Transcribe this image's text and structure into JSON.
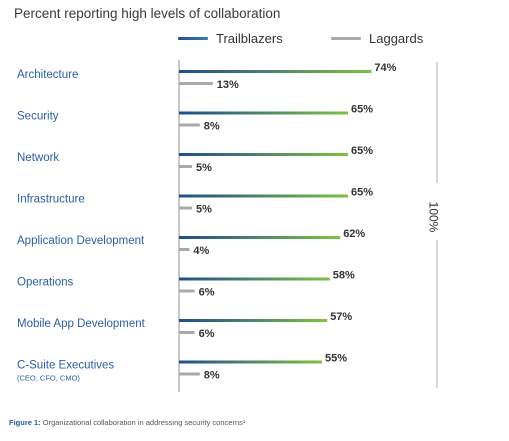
{
  "title": "Percent reporting high levels of collaboration",
  "legend": {
    "trailblazers": "Trailblazers",
    "laggards": "Laggards"
  },
  "colors": {
    "trailblazers_start": "#1f4e8c",
    "trailblazers_end": "#7dc242",
    "laggards": "#a7a9ac",
    "category_text": "#2a5ea8",
    "axis": "#b5b5b5"
  },
  "scale_label": "100%",
  "caption": {
    "prefix": "Figure 1:",
    "text": " Organizational collaboration in addressing security concerns¹"
  },
  "chart_data": {
    "type": "bar",
    "orientation": "horizontal",
    "title": "Percent reporting high levels of collaboration",
    "categories": [
      "Architecture",
      "Security",
      "Network",
      "Infrastructure",
      "Application Development",
      "Operations",
      "Mobile App Development",
      "C-Suite Executives"
    ],
    "category_sublabels": [
      "",
      "",
      "",
      "",
      "",
      "",
      "",
      "(CEO, CFO, CMO)"
    ],
    "series": [
      {
        "name": "Trailblazers",
        "values": [
          74,
          65,
          65,
          65,
          62,
          58,
          57,
          55
        ],
        "labels": [
          "74%",
          "65%",
          "65%",
          "65%",
          "62%",
          "58%",
          "57%",
          "55%"
        ]
      },
      {
        "name": "Laggards",
        "values": [
          13,
          8,
          5,
          5,
          4,
          6,
          6,
          8
        ],
        "labels": [
          "13%",
          "8%",
          "5%",
          "5%",
          "4%",
          "6%",
          "6%",
          "8%"
        ]
      }
    ],
    "xlim": [
      0,
      100
    ],
    "legend_position": "top-right",
    "grid": false
  }
}
